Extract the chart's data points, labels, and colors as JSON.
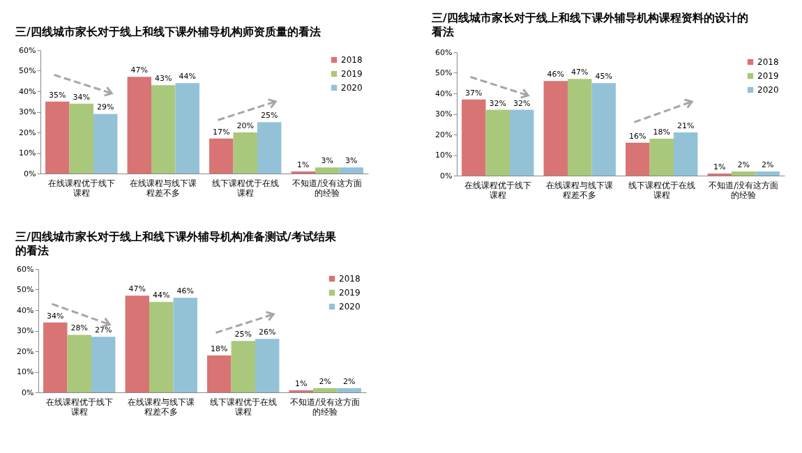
{
  "chart_data": [
    {
      "type": "bar",
      "title": "三/四线城市家长对于线上和线下课外辅导机构师资质量的看法",
      "categories": [
        "在线课程优于线下课程",
        "在线课程与线下课程差不多",
        "线下课程优于在线课程",
        "不知道/没有这方面的经验"
      ],
      "series": [
        {
          "name": "2018",
          "color": "#d87474",
          "values": [
            35,
            47,
            17,
            1
          ],
          "value_labels": [
            "35%",
            "47%",
            "17%",
            "1%"
          ]
        },
        {
          "name": "2019",
          "color": "#a9c87b",
          "values": [
            34,
            43,
            20,
            3
          ],
          "value_labels": [
            "34%",
            "43%",
            "20%",
            "3%"
          ]
        },
        {
          "name": "2020",
          "color": "#93c2d7",
          "values": [
            29,
            44,
            25,
            3
          ],
          "value_labels": [
            "29%",
            "44%",
            "25%",
            "3%"
          ]
        }
      ],
      "ylim": [
        0,
        60
      ],
      "yticks": [
        {
          "value": 0,
          "label": "0%"
        },
        {
          "value": 10,
          "label": "10%"
        },
        {
          "value": 20,
          "label": "20%"
        },
        {
          "value": 30,
          "label": "30%"
        },
        {
          "value": 40,
          "label": "40%"
        },
        {
          "value": 50,
          "label": "50%"
        },
        {
          "value": 60,
          "label": "60%"
        }
      ],
      "legend": "top right"
    },
    {
      "type": "bar",
      "title": "三/四线城市家长对于线上和线下课外辅导机构课程资料的设计的看法",
      "categories": [
        "在线课程优于线下课程",
        "在线课程与线下课程差不多",
        "线下课程优于在线课程",
        "不知道/没有这方面的经验"
      ],
      "series": [
        {
          "name": "2018",
          "color": "#d87474",
          "values": [
            37,
            46,
            16,
            1
          ],
          "value_labels": [
            "37%",
            "46%",
            "16%",
            "1%"
          ]
        },
        {
          "name": "2019",
          "color": "#a9c87b",
          "values": [
            32,
            47,
            18,
            2
          ],
          "value_labels": [
            "32%",
            "47%",
            "18%",
            "2%"
          ]
        },
        {
          "name": "2020",
          "color": "#93c2d7",
          "values": [
            32,
            45,
            21,
            2
          ],
          "value_labels": [
            "32%",
            "45%",
            "21%",
            "2%"
          ]
        }
      ],
      "ylim": [
        0,
        60
      ],
      "yticks": [
        {
          "value": 0,
          "label": "0%"
        },
        {
          "value": 10,
          "label": "10%"
        },
        {
          "value": 20,
          "label": "20%"
        },
        {
          "value": 30,
          "label": "30%"
        },
        {
          "value": 40,
          "label": "40%"
        },
        {
          "value": 50,
          "label": "50%"
        },
        {
          "value": 60,
          "label": "60%"
        }
      ],
      "legend": "top right"
    },
    {
      "type": "bar",
      "title": "三/四线城市家长对于线上和线下课外辅导机构准备测试/考试结果的看法",
      "categories": [
        "在线课程优于线下课程",
        "在线课程与线下课程差不多",
        "线下课程优于在线课程",
        "不知道/没有这方面的经验"
      ],
      "series": [
        {
          "name": "2018",
          "color": "#d87474",
          "values": [
            34,
            47,
            18,
            1
          ],
          "value_labels": [
            "34%",
            "47%",
            "18%",
            "1%"
          ]
        },
        {
          "name": "2019",
          "color": "#a9c87b",
          "values": [
            28,
            44,
            25,
            2
          ],
          "value_labels": [
            "28%",
            "44%",
            "25%",
            "2%"
          ]
        },
        {
          "name": "2020",
          "color": "#93c2d7",
          "values": [
            27,
            46,
            26,
            2
          ],
          "value_labels": [
            "27%",
            "46%",
            "26%",
            "2%"
          ]
        }
      ],
      "ylim": [
        0,
        60
      ],
      "yticks": [
        {
          "value": 0,
          "label": "0%"
        },
        {
          "value": 10,
          "label": "10%"
        },
        {
          "value": 20,
          "label": "20%"
        },
        {
          "value": 30,
          "label": "30%"
        },
        {
          "value": 40,
          "label": "40%"
        },
        {
          "value": 50,
          "label": "50%"
        },
        {
          "value": 60,
          "label": "60%"
        }
      ],
      "legend": "top right"
    }
  ]
}
